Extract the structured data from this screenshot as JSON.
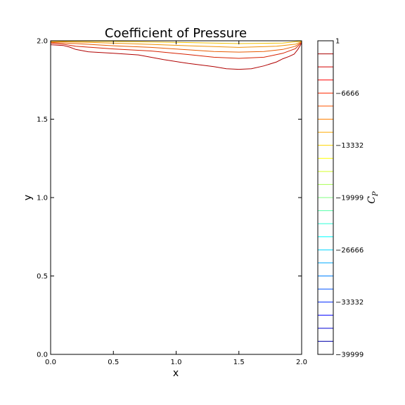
{
  "chart_data": {
    "type": "contour",
    "title": "Coefficient of Pressure",
    "xlabel": "x",
    "ylabel": "y",
    "xlim": [
      0.0,
      2.0
    ],
    "ylim": [
      0.0,
      2.0
    ],
    "x_ticks": [
      "0.0",
      "0.5",
      "1.0",
      "1.5",
      "2.0"
    ],
    "y_ticks": [
      "0.0",
      "0.5",
      "1.0",
      "1.5",
      "2.0"
    ],
    "grid": false,
    "colorbar": {
      "label": "C",
      "label_subscript": "P",
      "range": [
        -39999,
        1
      ],
      "tick_labels": [
        "1",
        "−6666",
        "−13332",
        "−19999",
        "−26666",
        "−33332",
        "−39999"
      ],
      "tick_values": [
        1,
        -6666,
        -13332,
        -19999,
        -26666,
        -33332,
        -39999
      ],
      "levels": 24,
      "colormap": "jet"
    },
    "contours": [
      {
        "color": "#b00000",
        "points": [
          [
            0.0,
            1.975
          ],
          [
            0.1,
            1.97
          ],
          [
            0.15,
            1.96
          ],
          [
            0.2,
            1.945
          ],
          [
            0.3,
            1.93
          ],
          [
            0.5,
            1.92
          ],
          [
            0.7,
            1.91
          ],
          [
            0.9,
            1.88
          ],
          [
            1.1,
            1.855
          ],
          [
            1.3,
            1.835
          ],
          [
            1.4,
            1.822
          ],
          [
            1.5,
            1.818
          ],
          [
            1.6,
            1.822
          ],
          [
            1.7,
            1.84
          ],
          [
            1.8,
            1.865
          ],
          [
            1.85,
            1.885
          ],
          [
            1.9,
            1.9
          ],
          [
            1.94,
            1.915
          ],
          [
            1.97,
            1.945
          ],
          [
            2.0,
            1.985
          ]
        ]
      },
      {
        "color": "#d62000",
        "points": [
          [
            0.0,
            1.985
          ],
          [
            0.1,
            1.978
          ],
          [
            0.2,
            1.965
          ],
          [
            0.5,
            1.948
          ],
          [
            0.8,
            1.935
          ],
          [
            1.1,
            1.912
          ],
          [
            1.3,
            1.895
          ],
          [
            1.5,
            1.888
          ],
          [
            1.7,
            1.895
          ],
          [
            1.85,
            1.92
          ],
          [
            1.95,
            1.95
          ],
          [
            2.0,
            1.99
          ]
        ]
      },
      {
        "color": "#e85a00",
        "points": [
          [
            0.0,
            1.99
          ],
          [
            0.2,
            1.982
          ],
          [
            0.5,
            1.968
          ],
          [
            0.8,
            1.958
          ],
          [
            1.1,
            1.942
          ],
          [
            1.3,
            1.932
          ],
          [
            1.5,
            1.928
          ],
          [
            1.7,
            1.932
          ],
          [
            1.85,
            1.945
          ],
          [
            1.95,
            1.965
          ],
          [
            2.0,
            1.993
          ]
        ]
      },
      {
        "color": "#f09000",
        "points": [
          [
            0.0,
            1.995
          ],
          [
            0.3,
            1.99
          ],
          [
            0.7,
            1.98
          ],
          [
            1.1,
            1.968
          ],
          [
            1.5,
            1.958
          ],
          [
            1.8,
            1.965
          ],
          [
            1.95,
            1.978
          ],
          [
            2.0,
            1.996
          ]
        ]
      },
      {
        "color": "#f0c000",
        "points": [
          [
            0.0,
            1.998
          ],
          [
            0.5,
            1.996
          ],
          [
            1.0,
            1.99
          ],
          [
            1.5,
            1.982
          ],
          [
            1.85,
            1.985
          ],
          [
            2.0,
            1.998
          ]
        ]
      }
    ]
  }
}
